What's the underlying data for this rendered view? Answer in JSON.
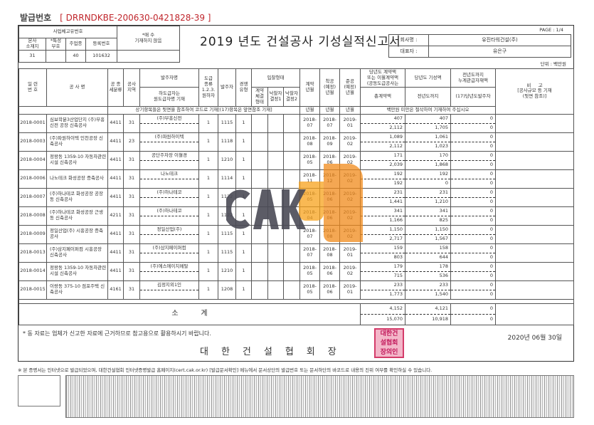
{
  "issue": {
    "label": "발급번호",
    "code": "[  DRRNDKBE-200630-0421828-39  ]"
  },
  "title": "2019 년도 건설공사 기성실적신고서",
  "page": "PAGE :  1/4",
  "company": {
    "name_label": "회사명 :",
    "name": "유진타워건설(주)",
    "ceo_label": "대표자 :",
    "ceo": "유은구"
  },
  "unit": "단위 : 백만원",
  "biz": {
    "header": "사업체고유번호",
    "note": "*매 수\n기재하지 않음",
    "cols": [
      "본사\n소재지",
      "*특성\n부호",
      "주업종",
      "등록번호"
    ],
    "vals": [
      "31",
      "",
      "40",
      "101632"
    ]
  },
  "headers": {
    "serial": "일 련\n번 호",
    "name": "공 사 명",
    "sub": "공 종\n세분류",
    "region": "공사\n지역",
    "client_group": "발주자명",
    "client": "하도급자는\n원도급자명 기재",
    "contract_type": "도급\n종류\n1.2.3.\n원하자",
    "orderer": "발주자",
    "compete": "경쟁\n유형",
    "bid": "입찰형태",
    "bid1": "계약\n체결\n형태",
    "bid2": "낙찰자\n결정1",
    "bid3": "낙찰자\n결정2",
    "cym": "계약\n년월",
    "start": "착공\n(예정)\n년월",
    "end": "준공\n(예정)\n년월",
    "amt": "당년도 계약액\n또는 이월계약액\n(공동도급공사는",
    "amt2": "총계약액",
    "done": "당년도 기성액",
    "done2": "전년도까지",
    "prev": "전년도까지\n누계관급자재액",
    "prev2": "(17)당년도발주자",
    "remark": "비     고\n[공사규모 등 기재\n(뒷면 참조)]",
    "codes_note": "상기항목들은 뒷면을 참조하여 코드로 기재[(17)항목은 앞면참조 기재]",
    "ym": "년월",
    "money_note": "백만원 미만은 절삭하여 기재하여 주십시오"
  },
  "rows": [
    {
      "no": "2018-0001",
      "name": "심보학분3산업단지 (주)부흥신전 공장 신축공사",
      "sub": "4411",
      "region": "31",
      "client": "(주)부흥신전",
      "ctype": "1",
      "orderer": "1115",
      "comp": "1",
      "cym": "2018-07",
      "start": "2018-07",
      "end": "2019-01",
      "a1": "407",
      "a2": "2,112",
      "d1": "407",
      "d2": "1,705",
      "p1": "0",
      "p2": "0"
    },
    {
      "no": "2018-0003",
      "name": "(주)파원하이텍 인천공장 신축공사",
      "sub": "4411",
      "region": "23",
      "client": "(주)파원하이텍",
      "ctype": "1",
      "orderer": "1118",
      "comp": "1",
      "cym": "2018-08",
      "start": "2018-09",
      "end": "2019-02",
      "a1": "1,089",
      "a2": "2,112",
      "d1": "1,061",
      "d2": "1,023",
      "p1": "0",
      "p2": "0"
    },
    {
      "no": "2018-0004",
      "name": "정왕동 1359-10 자동차관련 시설 신축공사",
      "sub": "4411",
      "region": "31",
      "client": "공단주차장 이쳘경",
      "ctype": "1",
      "orderer": "1210",
      "comp": "1",
      "cym": "2018-05",
      "start": "2018-06",
      "end": "2019-02",
      "a1": "171",
      "a2": "2,039",
      "d1": "170",
      "d2": "1,868",
      "p1": "0",
      "p2": "0"
    },
    {
      "no": "2018-0006",
      "name": "나노테크 화성공장 증축공사",
      "sub": "4411",
      "region": "31",
      "client": "나노테크",
      "ctype": "1",
      "orderer": "1114",
      "comp": "1",
      "cym": "2018-11",
      "start": "2018-12",
      "end": "2019-02",
      "a1": "192",
      "a2": "192",
      "d1": "192",
      "d2": "0",
      "p1": "0",
      "p2": "0"
    },
    {
      "no": "2018-0007",
      "name": "(주)하나테코 화성공장 공장동 신축공사",
      "sub": "4411",
      "region": "31",
      "client": "(주)하나테코",
      "ctype": "1",
      "orderer": "1122",
      "comp": "1",
      "cym": "2018-05",
      "start": "2018-06",
      "end": "2019-02",
      "a1": "231",
      "a2": "1,441",
      "d1": "231",
      "d2": "1,210",
      "p1": "0",
      "p2": "0"
    },
    {
      "no": "2018-0008",
      "name": "(주)하나테코 화성공장 근생동 신축공사",
      "sub": "4211",
      "region": "31",
      "client": "(주)하나테코",
      "ctype": "1",
      "orderer": "1122",
      "comp": "1",
      "cym": "2018-04",
      "start": "2018-06",
      "end": "2019-02",
      "a1": "341",
      "a2": "1,166",
      "d1": "341",
      "d2": "825",
      "p1": "0",
      "p2": "0"
    },
    {
      "no": "2018-0009",
      "name": "정일산업(주) 시흥공장 증축공사",
      "sub": "4411",
      "region": "31",
      "client": "정일산업(주)",
      "ctype": "1",
      "orderer": "1115",
      "comp": "1",
      "cym": "2018-07",
      "start": "2018-08",
      "end": "2019-02",
      "a1": "1,150",
      "a2": "2,717",
      "d1": "1,150",
      "d2": "1,567",
      "p1": "0",
      "p2": "0"
    },
    {
      "no": "2018-0013",
      "name": "(주)삼지페이퍼컴 시흥공장 신축공사",
      "sub": "4411",
      "region": "31",
      "client": "(주)삼지페이퍼컴",
      "ctype": "1",
      "orderer": "1115",
      "comp": "1",
      "cym": "2018-07",
      "start": "2018-08",
      "end": "2019-01",
      "a1": "159",
      "a2": "803",
      "d1": "158",
      "d2": "644",
      "p1": "0",
      "p2": "0"
    },
    {
      "no": "2018-0014",
      "name": "정왕동 1359-10 자동차관련 시설 신축공사",
      "sub": "4411",
      "region": "31",
      "client": "(주)에스에이치메탈",
      "ctype": "1",
      "orderer": "1210",
      "comp": "1",
      "cym": "2018-05",
      "start": "2018-06",
      "end": "2019-02",
      "a1": "179",
      "a2": "715",
      "d1": "178",
      "d2": "536",
      "p1": "0",
      "p2": "0"
    },
    {
      "no": "2018-0015",
      "name": "이랑동 375-10 점포주택 신축공사",
      "sub": "4161",
      "region": "31",
      "client": "김정지외1인",
      "ctype": "1",
      "orderer": "1208",
      "comp": "1",
      "cym": "2018-05",
      "start": "2018-06",
      "end": "2019-01",
      "a1": "233",
      "a2": "1,773",
      "d1": "233",
      "d2": "1,540",
      "p1": "0",
      "p2": "0"
    }
  ],
  "subtotal": {
    "label": "소          계",
    "a1": "4,152",
    "a2": "15,070",
    "d1": "4,121",
    "d2": "10,918",
    "p1": "0",
    "p2": "0"
  },
  "footer": {
    "note": "* 동 자료는 업체가 신고한 자료에 근거하므로 참고용으로 활용하시기 바랍니다.",
    "date": "2020년 06월 30일",
    "assoc": "대한건설협회장",
    "seal": "대한건\n설협회\n장의인"
  },
  "cert_note": "※ 본 증명서는 인터넷으로 발급되었으며, 대한건설협회 인터넷증명발급 홈페이지(cert.cak.or.kr) [발급문서확인] 메뉴에서 문서상단의 발급번호 또는 문서하단의 바코드로 내용의 진위 여부를 확인하실 수 있습니다.",
  "watermark": "CAK",
  "colors": {
    "issue_code": "#c0262c",
    "seal": "#d43c6a",
    "watermark_orange": "#f7a21b"
  }
}
